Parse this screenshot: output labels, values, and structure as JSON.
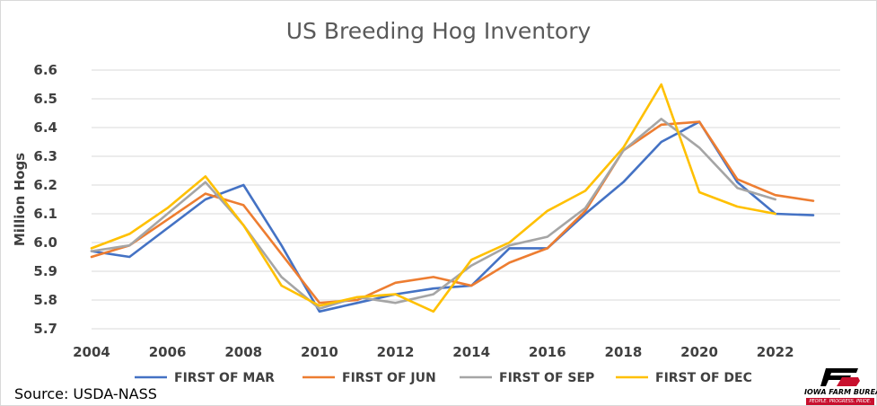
{
  "chart_data": {
    "type": "line",
    "title": "US Breeding Hog Inventory",
    "xlabel": "",
    "ylabel": "Million Hogs",
    "ylim": [
      5.7,
      6.6
    ],
    "xlim": [
      2004,
      2023
    ],
    "y_ticks": [
      "5.7",
      "5.8",
      "5.9",
      "6.0",
      "6.1",
      "6.2",
      "6.3",
      "6.4",
      "6.5",
      "6.6"
    ],
    "x_ticks": [
      "2004",
      "2006",
      "2008",
      "2010",
      "2012",
      "2014",
      "2016",
      "2018",
      "2020",
      "2022"
    ],
    "grid": true,
    "legend_position": "bottom",
    "x": [
      2004,
      2005,
      2006,
      2007,
      2008,
      2009,
      2010,
      2011,
      2012,
      2013,
      2014,
      2015,
      2016,
      2017,
      2018,
      2019,
      2020,
      2021,
      2022,
      2023
    ],
    "series": [
      {
        "name": "FIRST OF MAR",
        "color": "#4472c4",
        "values": [
          5.97,
          5.95,
          6.05,
          6.15,
          6.2,
          5.99,
          5.76,
          5.79,
          5.82,
          5.84,
          5.85,
          5.98,
          5.98,
          6.1,
          6.21,
          6.35,
          6.42,
          6.21,
          6.1,
          6.095
        ]
      },
      {
        "name": "FIRST OF JUN",
        "color": "#ed7d31",
        "values": [
          5.95,
          5.99,
          6.08,
          6.17,
          6.13,
          5.96,
          5.79,
          5.8,
          5.86,
          5.88,
          5.85,
          5.93,
          5.98,
          6.11,
          6.32,
          6.41,
          6.42,
          6.22,
          6.165,
          6.145
        ]
      },
      {
        "name": "FIRST OF SEP",
        "color": "#a5a5a5",
        "values": [
          5.97,
          5.99,
          6.1,
          6.21,
          6.06,
          5.88,
          5.77,
          5.81,
          5.79,
          5.82,
          5.92,
          5.99,
          6.02,
          6.12,
          6.32,
          6.43,
          6.33,
          6.19,
          6.15,
          null
        ]
      },
      {
        "name": "FIRST OF DEC",
        "color": "#ffc000",
        "values": [
          5.98,
          6.03,
          6.12,
          6.23,
          6.06,
          5.85,
          5.78,
          5.81,
          5.82,
          5.76,
          5.94,
          6.0,
          6.11,
          6.18,
          6.33,
          6.55,
          6.175,
          6.125,
          6.1,
          null
        ]
      }
    ]
  },
  "source": "Source: USDA-NASS",
  "logo": {
    "name": "IOWA FARM BUREAU",
    "tagline": "PEOPLE. PROGRESS. PRIDE.",
    "brand_color": "#c8102e"
  }
}
